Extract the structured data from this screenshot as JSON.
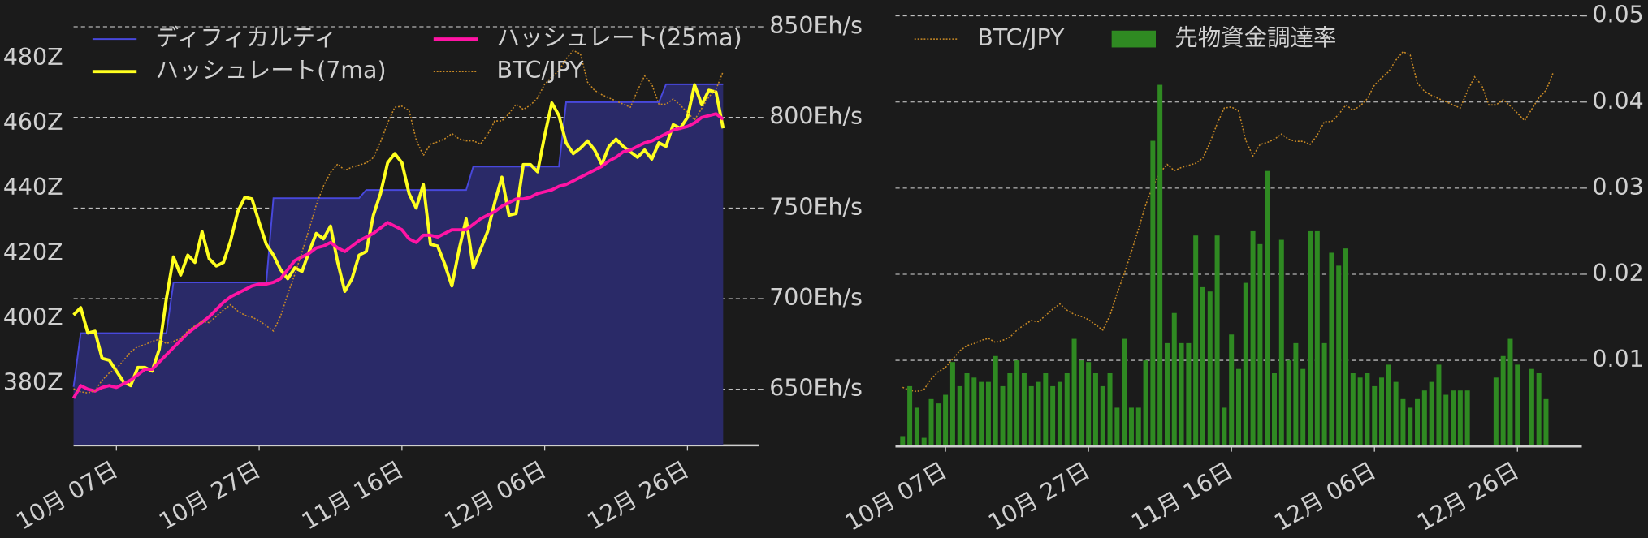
{
  "chart_data": [
    {
      "type": "line",
      "x": [
        "10-01",
        "10-02",
        "10-03",
        "10-04",
        "10-05",
        "10-06",
        "10-07",
        "10-08",
        "10-09",
        "10-10",
        "10-11",
        "10-12",
        "10-13",
        "10-14",
        "10-15",
        "10-16",
        "10-17",
        "10-18",
        "10-19",
        "10-20",
        "10-21",
        "10-22",
        "10-23",
        "10-24",
        "10-25",
        "10-26",
        "10-27",
        "10-28",
        "10-29",
        "10-30",
        "10-31",
        "11-01",
        "11-02",
        "11-03",
        "11-04",
        "11-05",
        "11-06",
        "11-07",
        "11-08",
        "11-09",
        "11-10",
        "11-11",
        "11-12",
        "11-13",
        "11-14",
        "11-15",
        "11-16",
        "11-17",
        "11-18",
        "11-19",
        "11-20",
        "11-21",
        "11-22",
        "11-23",
        "11-24",
        "11-25",
        "11-26",
        "11-27",
        "11-28",
        "11-29",
        "11-30",
        "12-01",
        "12-02",
        "12-03",
        "12-04",
        "12-05",
        "12-06",
        "12-07",
        "12-08",
        "12-09",
        "12-10",
        "12-11",
        "12-12",
        "12-13",
        "12-14",
        "12-15",
        "12-16",
        "12-17",
        "12-18",
        "12-19",
        "12-20",
        "12-21",
        "12-22",
        "12-23",
        "12-24",
        "12-25",
        "12-26",
        "12-27",
        "12-28",
        "12-29",
        "12-30",
        "12-31"
      ],
      "xlim": [
        "10-01",
        "01-05"
      ],
      "xticks": [
        {
          "value": "10-07",
          "label": "10月 07日"
        },
        {
          "value": "10-27",
          "label": "10月 27日"
        },
        {
          "value": "11-16",
          "label": "11月 16日"
        },
        {
          "value": "12-06",
          "label": "12月 06日"
        },
        {
          "value": "12-26",
          "label": "12月 26日"
        }
      ],
      "ylim": [
        361,
        493
      ],
      "yticks": [
        {
          "value": 380,
          "label": "380Z"
        },
        {
          "value": 400,
          "label": "400Z"
        },
        {
          "value": 420,
          "label": "420Z"
        },
        {
          "value": 440,
          "label": "440Z"
        },
        {
          "value": 460,
          "label": "460Z"
        },
        {
          "value": 480,
          "label": "480Z"
        }
      ],
      "y_side": "left",
      "y2lim": [
        619,
        856
      ],
      "y2ticks": [
        {
          "value": 650,
          "label": "650Eh/s"
        },
        {
          "value": 700,
          "label": "700Eh/s"
        },
        {
          "value": 750,
          "label": "750Eh/s"
        },
        {
          "value": 800,
          "label": "800Eh/s"
        },
        {
          "value": 850,
          "label": "850Eh/s"
        }
      ],
      "y2_side": "right",
      "y3lim": [
        3560000,
        6500000
      ],
      "grid": "y2",
      "legend": "upper left",
      "legend_columns": 2,
      "series": [
        {
          "name": "ディフィカルティ",
          "style": "area",
          "axis": "y",
          "color": "#4848dc",
          "fill": "#2a2a68",
          "values": [
            379,
            395.5,
            395.5,
            395.5,
            395.5,
            395.5,
            395.5,
            395.5,
            395.5,
            395.5,
            395.5,
            395.5,
            395.5,
            395.5,
            411.1,
            411.1,
            411.1,
            411.1,
            411.1,
            411.1,
            411.1,
            411.1,
            411.1,
            411.1,
            411.1,
            411.1,
            411.1,
            411.1,
            437,
            437,
            437,
            437,
            437,
            437,
            437,
            437,
            437,
            437,
            437,
            437,
            437,
            439.5,
            439.5,
            439.5,
            439.5,
            439.5,
            439.5,
            439.5,
            439.5,
            439.5,
            439.5,
            439.5,
            439.5,
            439.5,
            439.5,
            439.5,
            446.7,
            446.7,
            446.7,
            446.7,
            446.7,
            446.7,
            446.7,
            446.7,
            446.7,
            446.7,
            446.7,
            446.7,
            446.7,
            466.5,
            466.5,
            466.5,
            466.5,
            466.5,
            466.5,
            466.5,
            466.5,
            466.5,
            466.5,
            466.5,
            466.5,
            466.5,
            466.5,
            472,
            472,
            472,
            472,
            472,
            472,
            472,
            472,
            472
          ]
        },
        {
          "name": "ハッシュレート(7ma)",
          "style": "line",
          "axis": "y2",
          "color": "#ffff1f",
          "values": [
            691,
            695,
            681,
            682,
            667,
            666,
            660,
            654,
            652,
            662,
            662,
            660,
            672,
            700,
            723,
            713,
            724,
            720,
            737,
            722,
            718,
            720,
            732,
            748,
            756,
            755,
            742,
            730,
            724,
            716,
            711,
            717,
            715,
            726,
            736,
            733,
            740,
            720,
            704,
            711,
            724,
            726,
            746,
            758,
            775,
            780,
            775,
            758,
            750,
            763,
            730,
            729,
            719,
            707,
            727,
            744,
            717,
            727,
            737,
            753,
            767,
            746,
            747,
            774,
            774,
            770,
            790,
            808,
            801,
            786,
            780,
            783,
            787,
            782,
            774,
            784,
            788,
            784,
            781,
            778,
            782,
            777,
            786,
            784,
            796,
            794,
            800,
            818,
            807,
            815,
            814,
            794
          ]
        },
        {
          "name": "ハッシュレート(25ma)",
          "style": "line",
          "axis": "y2",
          "color": "#ff14a4",
          "values": [
            645,
            652,
            650,
            649,
            651,
            652,
            651,
            653,
            655,
            658,
            661,
            661,
            665,
            669,
            673,
            677,
            681,
            684,
            687,
            690,
            694,
            698,
            701,
            703,
            705,
            707,
            708,
            708,
            709,
            711,
            716,
            721,
            723,
            725,
            728,
            729,
            731,
            728,
            726,
            729,
            732,
            734,
            736,
            739,
            742,
            740,
            738,
            733,
            731,
            735,
            735,
            734,
            736,
            738,
            738,
            738,
            741,
            744,
            746,
            748,
            751,
            753,
            755,
            755,
            756,
            758,
            759,
            760,
            762,
            763,
            765,
            767,
            769,
            771,
            773,
            776,
            778,
            781,
            782,
            784,
            786,
            787,
            789,
            791,
            793,
            794,
            795,
            797,
            800,
            801,
            802,
            799
          ]
        },
        {
          "name": "BTC/JPY",
          "style": "dotted",
          "axis": "y3",
          "color": "#c98a25",
          "values": [
            3948000,
            3927000,
            3919000,
            3934000,
            4006000,
            4056000,
            4085000,
            4142000,
            4200000,
            4236000,
            4250000,
            4272000,
            4286000,
            4257000,
            4272000,
            4293000,
            4343000,
            4379000,
            4408000,
            4401000,
            4444000,
            4487000,
            4523000,
            4480000,
            4451000,
            4437000,
            4415000,
            4379000,
            4343000,
            4444000,
            4595000,
            4732000,
            4883000,
            5041000,
            5206000,
            5335000,
            5429000,
            5486000,
            5443000,
            5465000,
            5479000,
            5494000,
            5530000,
            5637000,
            5767000,
            5875000,
            5882000,
            5853000,
            5652000,
            5544000,
            5623000,
            5637000,
            5659000,
            5695000,
            5659000,
            5645000,
            5645000,
            5623000,
            5688000,
            5781000,
            5781000,
            5831000,
            5896000,
            5860000,
            5889000,
            5939000,
            6033000,
            6083000,
            6126000,
            6205000,
            6263000,
            6241000,
            6047000,
            5990000,
            5961000,
            5939000,
            5918000,
            5896000,
            5875000,
            5990000,
            6090000,
            6033000,
            5896000,
            5896000,
            5932000,
            5889000,
            5839000,
            5788000,
            5867000,
            5946000,
            5997000,
            6119000
          ]
        }
      ]
    },
    {
      "type": "bar",
      "x": [
        "10-01",
        "10-02",
        "10-03",
        "10-04",
        "10-05",
        "10-06",
        "10-07",
        "10-08",
        "10-09",
        "10-10",
        "10-11",
        "10-12",
        "10-13",
        "10-14",
        "10-15",
        "10-16",
        "10-17",
        "10-18",
        "10-19",
        "10-20",
        "10-21",
        "10-22",
        "10-23",
        "10-24",
        "10-25",
        "10-26",
        "10-27",
        "10-28",
        "10-29",
        "10-30",
        "10-31",
        "11-01",
        "11-02",
        "11-03",
        "11-04",
        "11-05",
        "11-06",
        "11-07",
        "11-08",
        "11-09",
        "11-10",
        "11-11",
        "11-12",
        "11-13",
        "11-14",
        "11-15",
        "11-16",
        "11-17",
        "11-18",
        "11-19",
        "11-20",
        "11-21",
        "11-22",
        "11-23",
        "11-24",
        "11-25",
        "11-26",
        "11-27",
        "11-28",
        "11-29",
        "11-30",
        "12-01",
        "12-02",
        "12-03",
        "12-04",
        "12-05",
        "12-06",
        "12-07",
        "12-08",
        "12-09",
        "12-10",
        "12-11",
        "12-12",
        "12-13",
        "12-14",
        "12-15",
        "12-16",
        "12-17",
        "12-18",
        "12-19",
        "12-20",
        "12-21",
        "12-22",
        "12-23",
        "12-24",
        "12-25",
        "12-26",
        "12-27",
        "12-28",
        "12-29",
        "12-30",
        "12-31"
      ],
      "xlim": [
        "09-30",
        "01-04"
      ],
      "xticks": [
        {
          "value": "10-07",
          "label": "10月 07日"
        },
        {
          "value": "10-27",
          "label": "10月 27日"
        },
        {
          "value": "11-16",
          "label": "11月 16日"
        },
        {
          "value": "12-06",
          "label": "12月 06日"
        },
        {
          "value": "12-26",
          "label": "12月 26日"
        }
      ],
      "ylim": [
        0,
        0.05
      ],
      "yticks": [
        0.01,
        0.02,
        0.03,
        0.04,
        0.05
      ],
      "y_side": "right",
      "y3lim": [
        3540000,
        6510000
      ],
      "grid": "y",
      "legend": "upper left",
      "legend_columns": 2,
      "series": [
        {
          "name": "BTC/JPY",
          "style": "dotted",
          "axis": "y3",
          "color": "#c98a25",
          "values": [
            3948000,
            3927000,
            3919000,
            3934000,
            4006000,
            4056000,
            4085000,
            4142000,
            4200000,
            4236000,
            4250000,
            4272000,
            4286000,
            4257000,
            4272000,
            4293000,
            4343000,
            4379000,
            4408000,
            4401000,
            4444000,
            4487000,
            4523000,
            4480000,
            4451000,
            4437000,
            4415000,
            4379000,
            4343000,
            4444000,
            4595000,
            4732000,
            4883000,
            5041000,
            5206000,
            5335000,
            5429000,
            5486000,
            5443000,
            5465000,
            5479000,
            5494000,
            5530000,
            5637000,
            5767000,
            5875000,
            5882000,
            5853000,
            5652000,
            5544000,
            5623000,
            5637000,
            5659000,
            5695000,
            5659000,
            5645000,
            5645000,
            5623000,
            5688000,
            5781000,
            5781000,
            5831000,
            5896000,
            5860000,
            5889000,
            5939000,
            6033000,
            6083000,
            6126000,
            6205000,
            6263000,
            6241000,
            6047000,
            5990000,
            5961000,
            5939000,
            5918000,
            5896000,
            5875000,
            5990000,
            6090000,
            6033000,
            5896000,
            5896000,
            5932000,
            5889000,
            5839000,
            5788000,
            5867000,
            5946000,
            5997000,
            6119000
          ]
        },
        {
          "name": "先物資金調達率",
          "style": "bar",
          "axis": "y",
          "color": "#2f8a22",
          "values": [
            0.0012,
            0.007,
            0.0045,
            0.001,
            0.0055,
            0.005,
            0.006,
            0.0098,
            0.007,
            0.0085,
            0.008,
            0.0075,
            0.0075,
            0.0105,
            0.007,
            0.0085,
            0.01,
            0.0085,
            0.007,
            0.0075,
            0.0085,
            0.007,
            0.0075,
            0.0085,
            0.0125,
            0.01,
            0.0098,
            0.0085,
            0.007,
            0.0085,
            0.0045,
            0.0125,
            0.0045,
            0.0045,
            0.01,
            0.0355,
            0.042,
            0.012,
            0.0155,
            0.012,
            0.012,
            0.0245,
            0.0185,
            0.018,
            0.0245,
            0.0045,
            0.013,
            0.009,
            0.019,
            0.025,
            0.0235,
            0.032,
            0.0085,
            0.024,
            0.01,
            0.012,
            0.009,
            0.025,
            0.025,
            0.012,
            0.0225,
            0.021,
            0.023,
            0.0085,
            0.008,
            0.0085,
            0.007,
            0.008,
            0.0095,
            0.0075,
            0.0055,
            0.0045,
            0.0055,
            0.0065,
            0.0075,
            0.0095,
            0.006,
            0.0065,
            0.0065,
            0.0065,
            null,
            null,
            null,
            0.008,
            0.0105,
            0.0125,
            0.0095,
            null,
            0.009,
            0.0085,
            0.0055,
            null
          ]
        }
      ]
    }
  ]
}
